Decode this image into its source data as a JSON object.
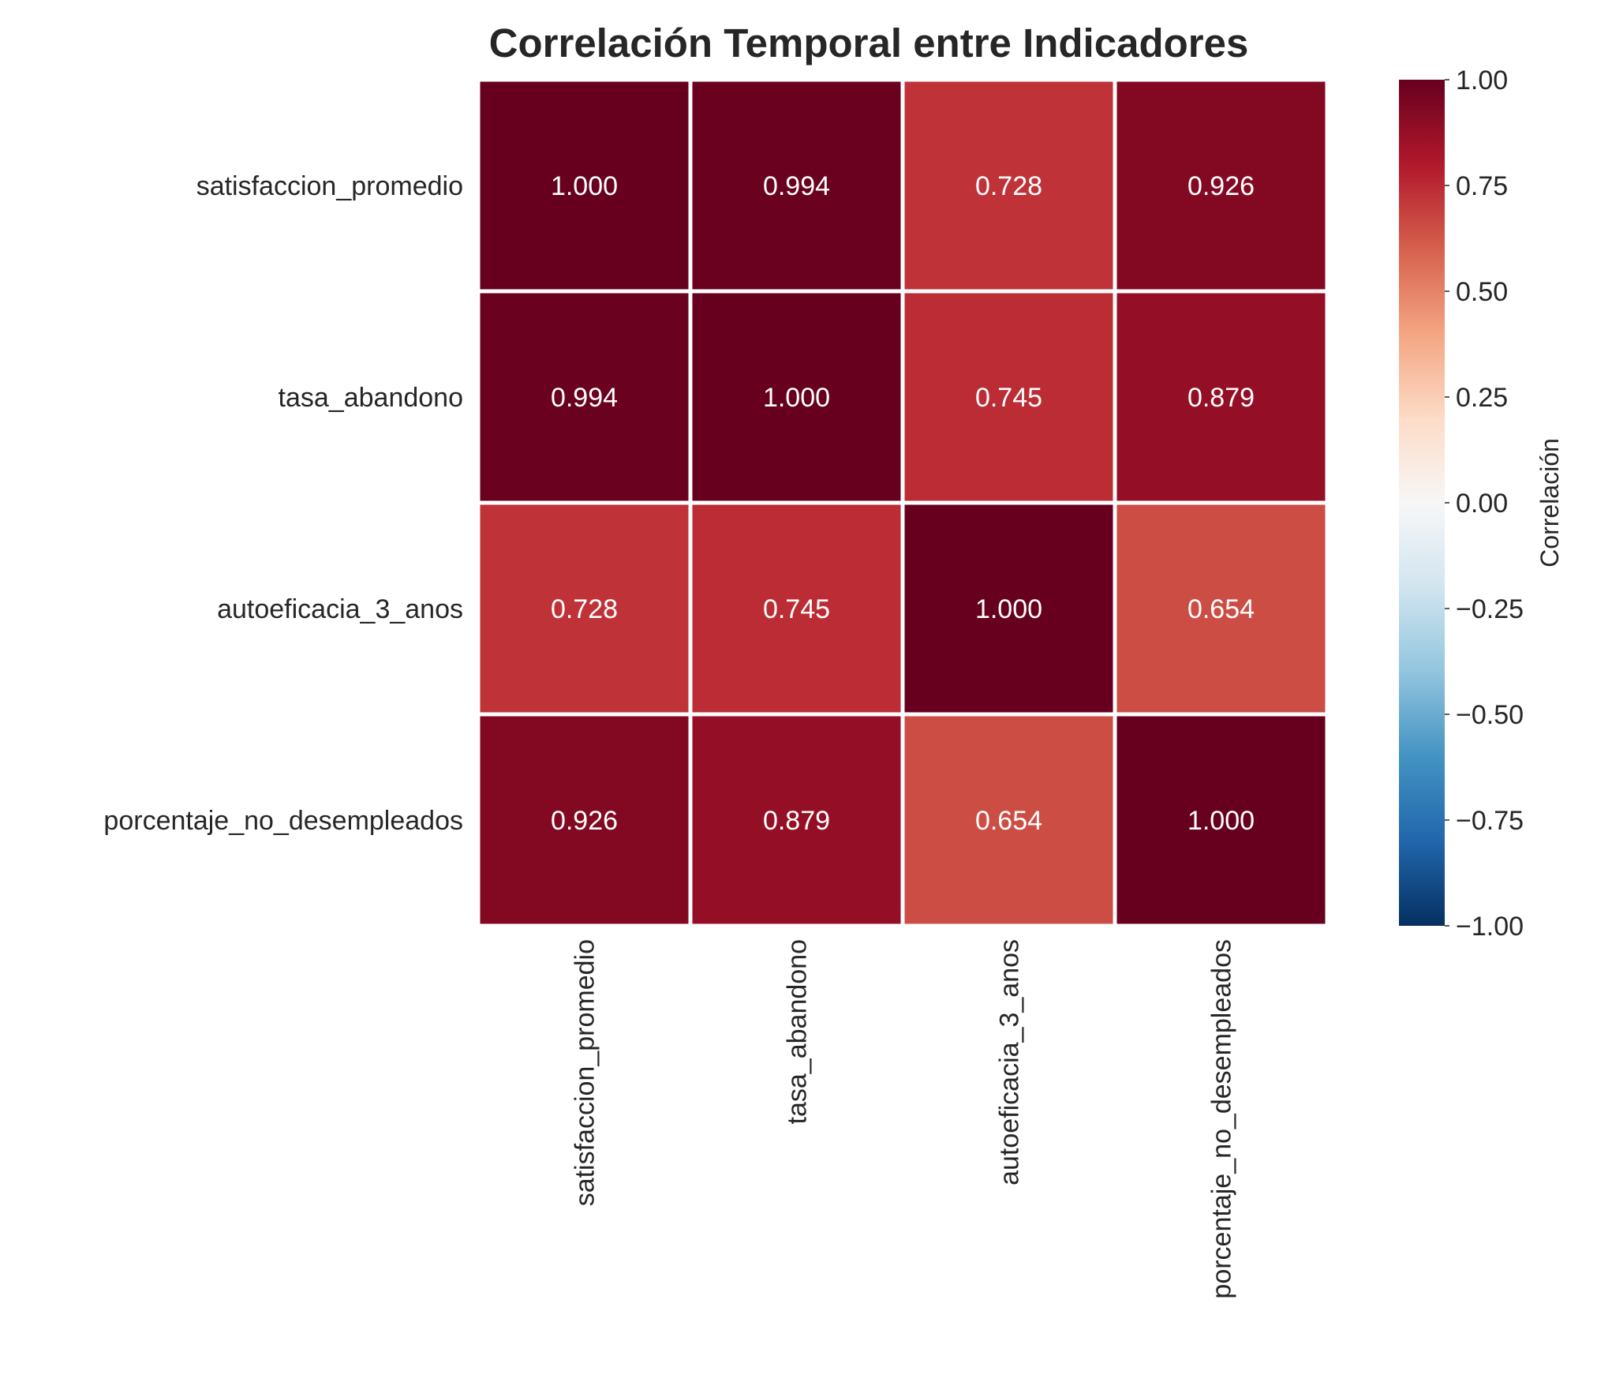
{
  "chart_data": {
    "type": "heatmap",
    "title": "Correlación Temporal entre Indicadores",
    "rows": [
      "satisfaccion_promedio",
      "tasa_abandono",
      "autoeficacia_3_anos",
      "porcentaje_no_desempleados"
    ],
    "columns": [
      "satisfaccion_promedio",
      "tasa_abandono",
      "autoeficacia_3_anos",
      "porcentaje_no_desempleados"
    ],
    "values": [
      [
        1.0,
        0.994,
        0.728,
        0.926
      ],
      [
        0.994,
        1.0,
        0.745,
        0.879
      ],
      [
        0.728,
        0.745,
        1.0,
        0.654
      ],
      [
        0.926,
        0.879,
        0.654,
        1.0
      ]
    ],
    "value_labels": [
      [
        "1.000",
        "0.994",
        "0.728",
        "0.926"
      ],
      [
        "0.994",
        "1.000",
        "0.745",
        "0.879"
      ],
      [
        "0.728",
        "0.745",
        "1.000",
        "0.654"
      ],
      [
        "0.926",
        "0.879",
        "0.654",
        "1.000"
      ]
    ],
    "colorbar": {
      "label": "Correlación",
      "range": [
        -1,
        1
      ],
      "ticks": [
        1.0,
        0.75,
        0.5,
        0.25,
        0.0,
        -0.25,
        -0.5,
        -0.75,
        -1.0
      ],
      "tick_labels": [
        "1.00",
        "0.75",
        "0.50",
        "0.25",
        "0.00",
        "−0.25",
        "−0.50",
        "−0.75",
        "−1.00"
      ],
      "colormap": "RdBu_r",
      "colors": [
        "#053061",
        "#2166ac",
        "#4393c3",
        "#92c5de",
        "#d1e5f0",
        "#f7f7f7",
        "#fddbc7",
        "#f4a582",
        "#d6604d",
        "#b2182b",
        "#67001f"
      ]
    }
  }
}
